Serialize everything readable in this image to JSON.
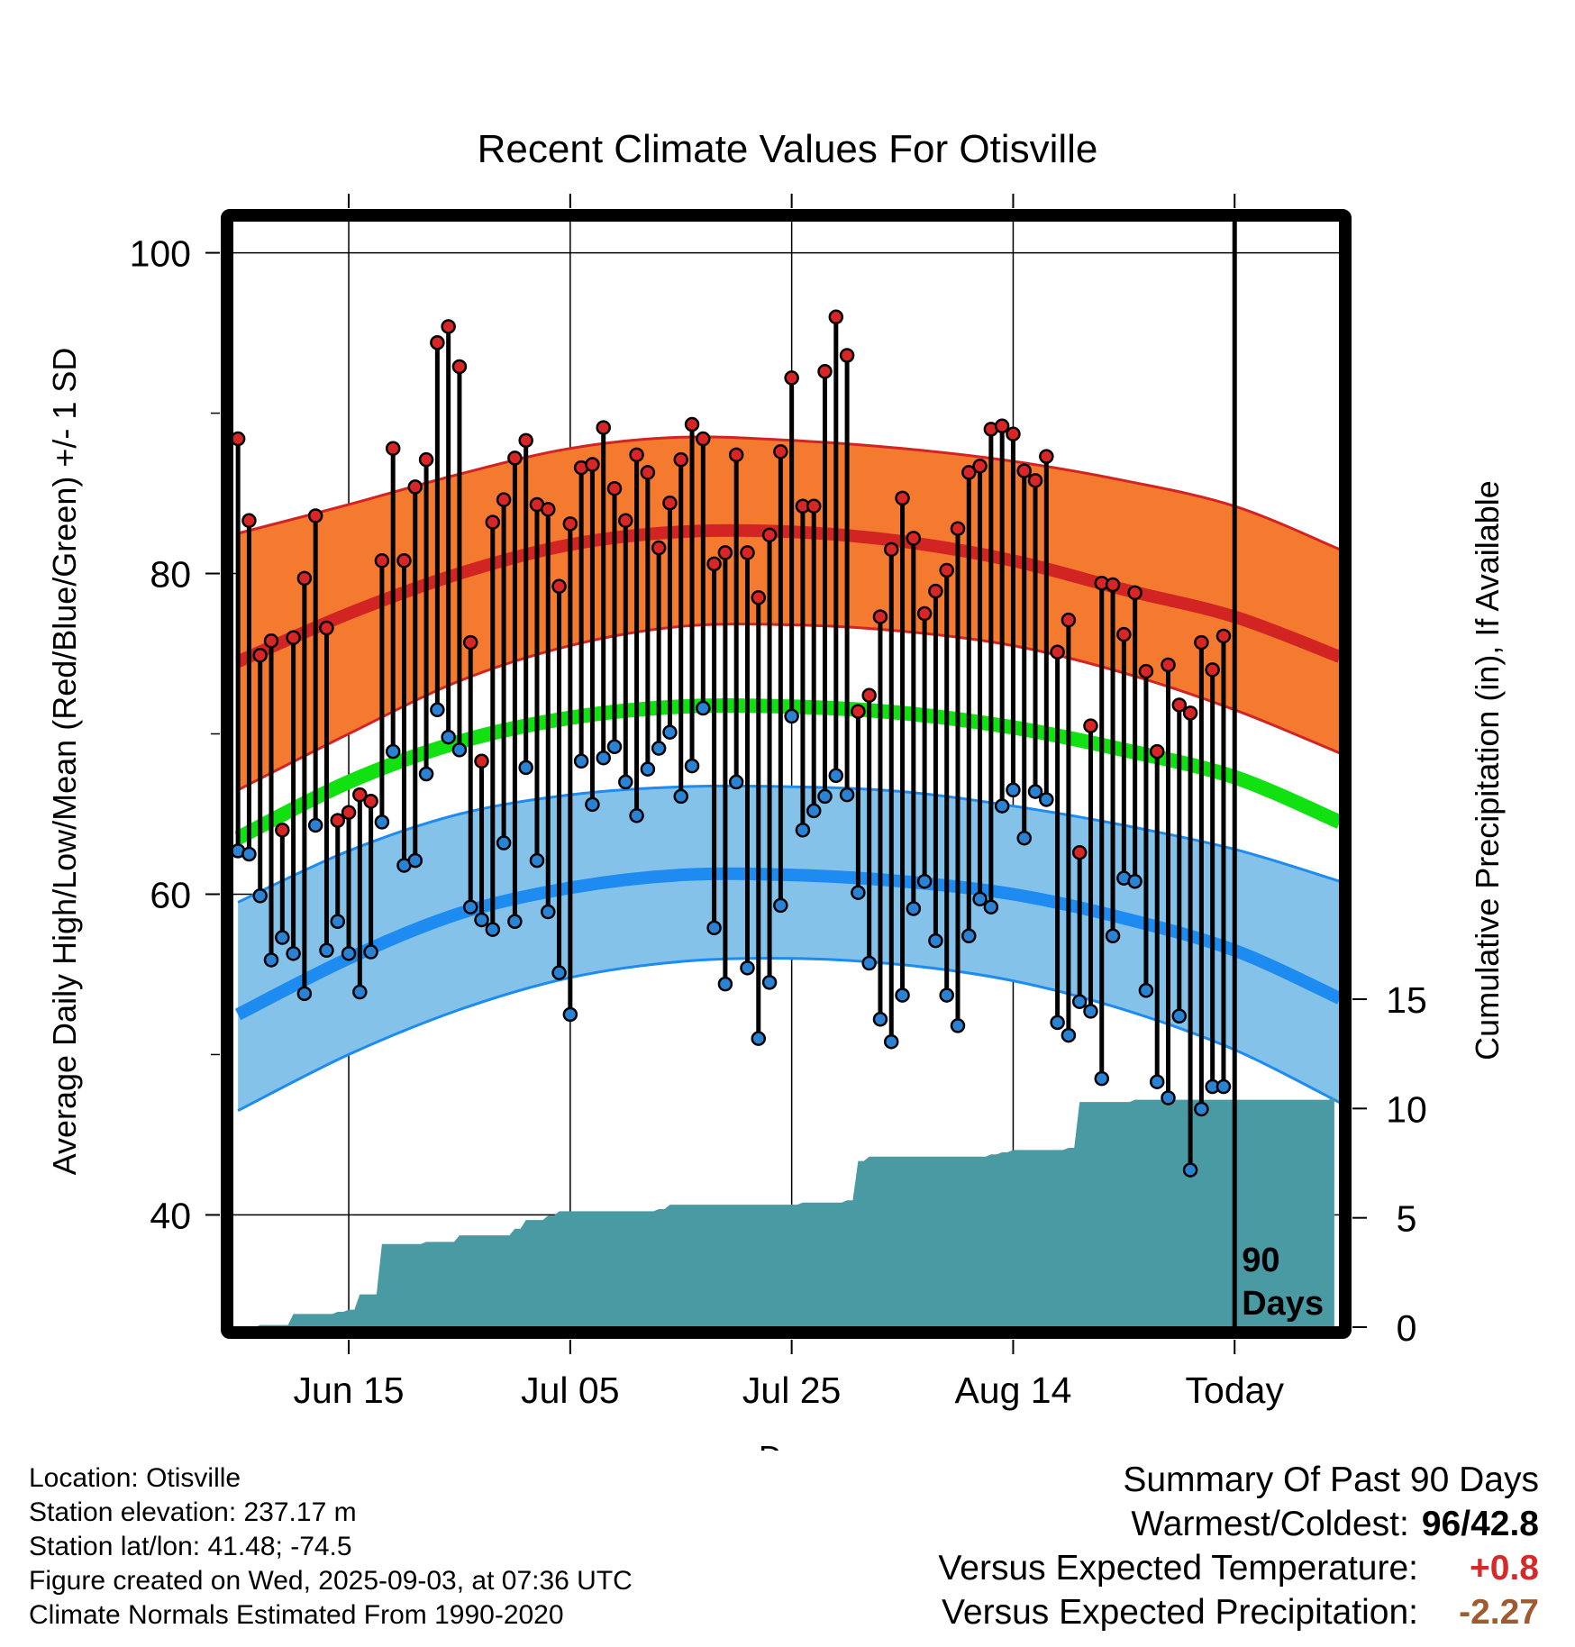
{
  "chart_data": {
    "type": "line",
    "title": "Recent Climate Values For Otisville",
    "xlabel": "Day",
    "ylabel_left": "Average Daily High/Low/Mean (Red/Blue/Green) +/- 1 SD",
    "ylabel_right": "Cumulative Precipitation (in), If Available",
    "x_ticks": [
      {
        "label": "Jun 15",
        "day": 11
      },
      {
        "label": "Jul 05",
        "day": 31
      },
      {
        "label": "Jul 25",
        "day": 51
      },
      {
        "label": "Aug 14",
        "day": 71
      },
      {
        "label": "Today",
        "day": 91
      }
    ],
    "x_range": [
      0.5,
      100.5
    ],
    "y_left_range": [
      33,
      102
    ],
    "y_left_ticks": [
      40,
      60,
      80,
      100
    ],
    "y_right_range": [
      0,
      15
    ],
    "y_right_ticks": [
      0,
      5,
      10,
      15
    ],
    "marker_label": "90 Days",
    "colors": {
      "high_band": "#f47a30",
      "high_line": "#d32424",
      "mean_line": "#11e011",
      "low_band": "#84c2ea",
      "low_line": "#1d8bf0",
      "precip": "#4a9aa4",
      "high_dot": "#d82626",
      "low_dot": "#2a82d4"
    },
    "normals": {
      "high_mean": [
        {
          "day": 1,
          "value": 74.5
        },
        {
          "day": 11,
          "value": 77.5
        },
        {
          "day": 21,
          "value": 80
        },
        {
          "day": 31,
          "value": 81.8
        },
        {
          "day": 41,
          "value": 82.6
        },
        {
          "day": 51,
          "value": 82.6
        },
        {
          "day": 61,
          "value": 82
        },
        {
          "day": 71,
          "value": 80.8
        },
        {
          "day": 81,
          "value": 79
        },
        {
          "day": 91,
          "value": 77.3
        },
        {
          "day": 101,
          "value": 74.8
        }
      ],
      "high_upper": [
        {
          "day": 1,
          "value": 82.5
        },
        {
          "day": 11,
          "value": 84.3
        },
        {
          "day": 21,
          "value": 86.2
        },
        {
          "day": 31,
          "value": 87.8
        },
        {
          "day": 41,
          "value": 88.5
        },
        {
          "day": 51,
          "value": 88.3
        },
        {
          "day": 61,
          "value": 87.8
        },
        {
          "day": 71,
          "value": 87
        },
        {
          "day": 81,
          "value": 85.8
        },
        {
          "day": 91,
          "value": 84.2
        },
        {
          "day": 101,
          "value": 81.5
        }
      ],
      "high_lower": [
        {
          "day": 1,
          "value": 66.5
        },
        {
          "day": 11,
          "value": 70
        },
        {
          "day": 21,
          "value": 73.3
        },
        {
          "day": 31,
          "value": 75.5
        },
        {
          "day": 41,
          "value": 76.7
        },
        {
          "day": 51,
          "value": 76.8
        },
        {
          "day": 61,
          "value": 76.4
        },
        {
          "day": 71,
          "value": 75.5
        },
        {
          "day": 81,
          "value": 73.8
        },
        {
          "day": 91,
          "value": 71.5
        },
        {
          "day": 101,
          "value": 68.8
        }
      ],
      "mean": [
        {
          "day": 1,
          "value": 63.5
        },
        {
          "day": 11,
          "value": 67
        },
        {
          "day": 21,
          "value": 69.5
        },
        {
          "day": 31,
          "value": 71
        },
        {
          "day": 41,
          "value": 71.7
        },
        {
          "day": 51,
          "value": 71.7
        },
        {
          "day": 61,
          "value": 71.3
        },
        {
          "day": 71,
          "value": 70.4
        },
        {
          "day": 81,
          "value": 69
        },
        {
          "day": 91,
          "value": 67.3
        },
        {
          "day": 101,
          "value": 64.5
        }
      ],
      "low_mean": [
        {
          "day": 1,
          "value": 52.5
        },
        {
          "day": 11,
          "value": 56
        },
        {
          "day": 21,
          "value": 58.8
        },
        {
          "day": 31,
          "value": 60.4
        },
        {
          "day": 41,
          "value": 61.2
        },
        {
          "day": 51,
          "value": 61.2
        },
        {
          "day": 61,
          "value": 60.8
        },
        {
          "day": 71,
          "value": 60
        },
        {
          "day": 81,
          "value": 58.5
        },
        {
          "day": 91,
          "value": 56.5
        },
        {
          "day": 101,
          "value": 53.5
        }
      ],
      "low_upper": [
        {
          "day": 1,
          "value": 59.5
        },
        {
          "day": 11,
          "value": 62.7
        },
        {
          "day": 21,
          "value": 65
        },
        {
          "day": 31,
          "value": 66.2
        },
        {
          "day": 41,
          "value": 66.7
        },
        {
          "day": 51,
          "value": 66.7
        },
        {
          "day": 61,
          "value": 66.4
        },
        {
          "day": 71,
          "value": 65.5
        },
        {
          "day": 81,
          "value": 64.3
        },
        {
          "day": 91,
          "value": 62.8
        },
        {
          "day": 101,
          "value": 60.8
        }
      ],
      "low_lower": [
        {
          "day": 1,
          "value": 46.5
        },
        {
          "day": 11,
          "value": 50
        },
        {
          "day": 21,
          "value": 52.8
        },
        {
          "day": 31,
          "value": 54.8
        },
        {
          "day": 41,
          "value": 55.8
        },
        {
          "day": 51,
          "value": 56
        },
        {
          "day": 61,
          "value": 55.6
        },
        {
          "day": 71,
          "value": 54.6
        },
        {
          "day": 81,
          "value": 52.8
        },
        {
          "day": 91,
          "value": 50.3
        },
        {
          "day": 101,
          "value": 47
        }
      ]
    },
    "daily": [
      {
        "day": 1,
        "high": 88.4,
        "low": 62.7
      },
      {
        "day": 2,
        "high": 83.3,
        "low": 62.5
      },
      {
        "day": 3,
        "high": 74.9,
        "low": 59.9
      },
      {
        "day": 4,
        "high": 75.8,
        "low": 55.9
      },
      {
        "day": 5,
        "high": 64,
        "low": 57.3
      },
      {
        "day": 6,
        "high": 76,
        "low": 56.3
      },
      {
        "day": 7,
        "high": 79.7,
        "low": 53.8
      },
      {
        "day": 8,
        "high": 83.6,
        "low": 64.3
      },
      {
        "day": 9,
        "high": 76.6,
        "low": 56.5
      },
      {
        "day": 10,
        "high": 64.6,
        "low": 58.3
      },
      {
        "day": 11,
        "high": 65.1,
        "low": 56.3
      },
      {
        "day": 12,
        "high": 66.2,
        "low": 53.9
      },
      {
        "day": 13,
        "high": 65.8,
        "low": 56.4
      },
      {
        "day": 14,
        "high": 80.8,
        "low": 64.5
      },
      {
        "day": 15,
        "high": 87.8,
        "low": 68.9
      },
      {
        "day": 16,
        "high": 80.8,
        "low": 61.8
      },
      {
        "day": 17,
        "high": 85.4,
        "low": 62.1
      },
      {
        "day": 18,
        "high": 87.1,
        "low": 67.5
      },
      {
        "day": 19,
        "high": 94.4,
        "low": 71.5
      },
      {
        "day": 20,
        "high": 95.4,
        "low": 69.8
      },
      {
        "day": 21,
        "high": 92.9,
        "low": 69
      },
      {
        "day": 22,
        "high": 75.7,
        "low": 59.2
      },
      {
        "day": 23,
        "high": 68.3,
        "low": 58.4
      },
      {
        "day": 24,
        "high": 83.2,
        "low": 57.8
      },
      {
        "day": 25,
        "high": 84.6,
        "low": 63.2
      },
      {
        "day": 26,
        "high": 87.2,
        "low": 58.3
      },
      {
        "day": 27,
        "high": 88.3,
        "low": 67.9
      },
      {
        "day": 28,
        "high": 84.3,
        "low": 62.1
      },
      {
        "day": 29,
        "high": 84,
        "low": 58.9
      },
      {
        "day": 30,
        "high": 79.2,
        "low": 55.1
      },
      {
        "day": 31,
        "high": 83.1,
        "low": 52.5
      },
      {
        "day": 32,
        "high": 86.6,
        "low": 68.3
      },
      {
        "day": 33,
        "high": 86.8,
        "low": 65.6
      },
      {
        "day": 34,
        "high": 89.1,
        "low": 68.5
      },
      {
        "day": 35,
        "high": 85.3,
        "low": 69.2
      },
      {
        "day": 36,
        "high": 83.3,
        "low": 67
      },
      {
        "day": 37,
        "high": 87.4,
        "low": 64.9
      },
      {
        "day": 38,
        "high": 86.3,
        "low": 67.8
      },
      {
        "day": 39,
        "high": 81.6,
        "low": 69.1
      },
      {
        "day": 40,
        "high": 84.4,
        "low": 70.1
      },
      {
        "day": 41,
        "high": 87.1,
        "low": 66.1
      },
      {
        "day": 42,
        "high": 89.3,
        "low": 68
      },
      {
        "day": 43,
        "high": 88.4,
        "low": 71.6
      },
      {
        "day": 44,
        "high": 80.6,
        "low": 57.9
      },
      {
        "day": 45,
        "high": 81.3,
        "low": 54.4
      },
      {
        "day": 46,
        "high": 87.4,
        "low": 67
      },
      {
        "day": 47,
        "high": 81.3,
        "low": 55.4
      },
      {
        "day": 48,
        "high": 78.5,
        "low": 51
      },
      {
        "day": 49,
        "high": 82.4,
        "low": 54.5
      },
      {
        "day": 50,
        "high": 87.6,
        "low": 59.3
      },
      {
        "day": 51,
        "high": 92.2,
        "low": 71.1
      },
      {
        "day": 52,
        "high": 84.2,
        "low": 64
      },
      {
        "day": 53,
        "high": 84.2,
        "low": 65.2
      },
      {
        "day": 54,
        "high": 92.6,
        "low": 66.1
      },
      {
        "day": 55,
        "high": 96,
        "low": 67.4
      },
      {
        "day": 56,
        "high": 93.6,
        "low": 66.2
      },
      {
        "day": 57,
        "high": 71.4,
        "low": 60.1
      },
      {
        "day": 58,
        "high": 72.4,
        "low": 55.7
      },
      {
        "day": 59,
        "high": 77.3,
        "low": 52.2
      },
      {
        "day": 60,
        "high": 81.5,
        "low": 50.8
      },
      {
        "day": 61,
        "high": 84.7,
        "low": 53.7
      },
      {
        "day": 62,
        "high": 82.2,
        "low": 59.1
      },
      {
        "day": 63,
        "high": 77.5,
        "low": 60.8
      },
      {
        "day": 64,
        "high": 78.9,
        "low": 57.1
      },
      {
        "day": 65,
        "high": 80.2,
        "low": 53.7
      },
      {
        "day": 66,
        "high": 82.8,
        "low": 51.8
      },
      {
        "day": 67,
        "high": 86.3,
        "low": 57.4
      },
      {
        "day": 68,
        "high": 86.7,
        "low": 59.7
      },
      {
        "day": 69,
        "high": 89,
        "low": 59.2
      },
      {
        "day": 70,
        "high": 89.2,
        "low": 65.5
      },
      {
        "day": 71,
        "high": 88.7,
        "low": 66.5
      },
      {
        "day": 72,
        "high": 86.4,
        "low": 63.5
      },
      {
        "day": 73,
        "high": 85.8,
        "low": 66.4
      },
      {
        "day": 74,
        "high": 87.3,
        "low": 65.9
      },
      {
        "day": 75,
        "high": 75.1,
        "low": 52
      },
      {
        "day": 76,
        "high": 77.1,
        "low": 51.2
      },
      {
        "day": 77,
        "high": 62.6,
        "low": 53.3
      },
      {
        "day": 78,
        "high": 70.5,
        "low": 52.7
      },
      {
        "day": 79,
        "high": 79.4,
        "low": 48.5
      },
      {
        "day": 80,
        "high": 79.3,
        "low": 57.4
      },
      {
        "day": 81,
        "high": 76.2,
        "low": 61
      },
      {
        "day": 82,
        "high": 78.8,
        "low": 60.8
      },
      {
        "day": 83,
        "high": 73.9,
        "low": 54
      },
      {
        "day": 84,
        "high": 68.9,
        "low": 48.3
      },
      {
        "day": 85,
        "high": 74.3,
        "low": 47.3
      },
      {
        "day": 86,
        "high": 71.8,
        "low": 52.4
      },
      {
        "day": 87,
        "high": 71.3,
        "low": 42.8
      },
      {
        "day": 88,
        "high": 75.7,
        "low": 46.6
      },
      {
        "day": 89,
        "high": 74,
        "low": 48
      },
      {
        "day": 90,
        "high": 76.1,
        "low": 48
      }
    ],
    "cumulative_precip": [
      {
        "day": 1,
        "value": 0
      },
      {
        "day": 3,
        "value": 0.1
      },
      {
        "day": 6,
        "value": 0.6
      },
      {
        "day": 10,
        "value": 0.7
      },
      {
        "day": 11,
        "value": 0.8
      },
      {
        "day": 12,
        "value": 1.5
      },
      {
        "day": 14,
        "value": 3.8
      },
      {
        "day": 18,
        "value": 3.9
      },
      {
        "day": 21,
        "value": 4.2
      },
      {
        "day": 26,
        "value": 4.5
      },
      {
        "day": 27,
        "value": 4.9
      },
      {
        "day": 29,
        "value": 5.1
      },
      {
        "day": 30,
        "value": 5.3
      },
      {
        "day": 39,
        "value": 5.4
      },
      {
        "day": 40,
        "value": 5.6
      },
      {
        "day": 52,
        "value": 5.7
      },
      {
        "day": 56,
        "value": 5.8
      },
      {
        "day": 57,
        "value": 7.6
      },
      {
        "day": 58,
        "value": 7.8
      },
      {
        "day": 69,
        "value": 7.9
      },
      {
        "day": 70,
        "value": 8.0
      },
      {
        "day": 71,
        "value": 8.1
      },
      {
        "day": 76,
        "value": 8.2
      },
      {
        "day": 77,
        "value": 10.3
      },
      {
        "day": 82,
        "value": 10.4
      },
      {
        "day": 100,
        "value": 10.5
      }
    ]
  },
  "footer": {
    "location": "Location: Otisville",
    "elevation": "Station elevation: 237.17 m",
    "latlon": "Station lat/lon: 41.48; -74.5",
    "created": "Figure created on Wed, 2025-09-03, at 07:36 UTC",
    "normals": "Climate Normals Estimated From 1990-2020"
  },
  "summary": {
    "heading": "Summary Of Past 90 Days",
    "warm_cold_label": "Warmest/Coldest:",
    "warmest": "96",
    "sep": "/",
    "coldest": "42.8",
    "temp_label": "Versus Expected Temperature:",
    "temp_value": "+0.8",
    "temp_color": "#d42a2a",
    "precip_label": "Versus Expected Precipitation:",
    "precip_value": "-2.27",
    "precip_color": "#a05a30"
  }
}
